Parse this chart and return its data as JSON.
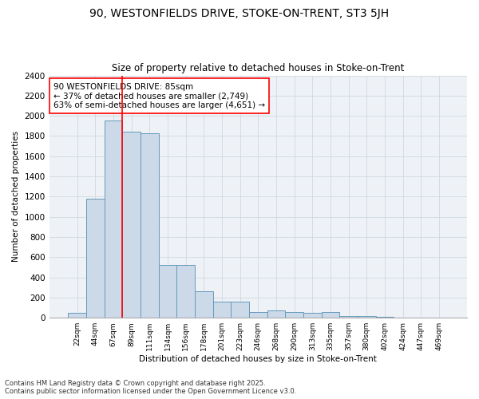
{
  "title_line1": "90, WESTONFIELDS DRIVE, STOKE-ON-TRENT, ST3 5JH",
  "title_line2": "Size of property relative to detached houses in Stoke-on-Trent",
  "xlabel": "Distribution of detached houses by size in Stoke-on-Trent",
  "ylabel": "Number of detached properties",
  "categories": [
    "22sqm",
    "44sqm",
    "67sqm",
    "89sqm",
    "111sqm",
    "134sqm",
    "156sqm",
    "178sqm",
    "201sqm",
    "223sqm",
    "246sqm",
    "268sqm",
    "290sqm",
    "313sqm",
    "335sqm",
    "357sqm",
    "380sqm",
    "402sqm",
    "424sqm",
    "447sqm",
    "469sqm"
  ],
  "values": [
    50,
    1180,
    1950,
    1840,
    1830,
    520,
    520,
    260,
    160,
    160,
    55,
    75,
    55,
    50,
    60,
    20,
    15,
    8,
    5,
    3,
    2
  ],
  "bar_color": "#ccd9e8",
  "bar_edge_color": "#6699bb",
  "grid_color": "#d0d8e0",
  "background_color": "#eef2f7",
  "vline_color": "red",
  "annotation_text": "90 WESTONFIELDS DRIVE: 85sqm\n← 37% of detached houses are smaller (2,749)\n63% of semi-detached houses are larger (4,651) →",
  "annotation_box_color": "white",
  "annotation_box_edge": "red",
  "ylim": [
    0,
    2400
  ],
  "yticks": [
    0,
    200,
    400,
    600,
    800,
    1000,
    1200,
    1400,
    1600,
    1800,
    2000,
    2200,
    2400
  ],
  "footnote_line1": "Contains HM Land Registry data © Crown copyright and database right 2025.",
  "footnote_line2": "Contains public sector information licensed under the Open Government Licence v3.0."
}
